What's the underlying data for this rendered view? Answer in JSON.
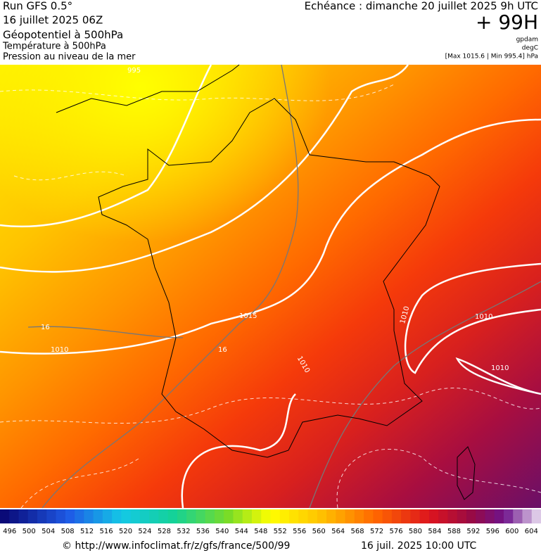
{
  "header": {
    "run": "Run GFS 0.5°",
    "date": "16 juillet 2025 06Z",
    "layer1": "Géopotentiel à 500hPa",
    "layer2": "Température à 500hPa",
    "layer3": "Pression au niveau de la mer",
    "echeance": "Echéance : dimanche 20 juillet 2025 9h UTC",
    "hour": "+ 99H",
    "unit1": "gpdam",
    "unit2": "degC",
    "range": "[Max 1015.6 | Min 995.4] hPa"
  },
  "map": {
    "contour_labels": [
      "995",
      "16",
      "1010",
      "1015",
      "16",
      "1010",
      "1010",
      "1010",
      "1010"
    ]
  },
  "colorbar": {
    "ticks": [
      496,
      500,
      504,
      508,
      512,
      516,
      520,
      524,
      528,
      532,
      536,
      540,
      544,
      548,
      552,
      556,
      560,
      564,
      568,
      572,
      576,
      580,
      584,
      588,
      592,
      596,
      600,
      604
    ]
  },
  "footer": {
    "url": "© http://www.infoclimat.fr/z/gfs/france/500/99",
    "timestamp": "16 juil. 2025 10:00 UTC"
  }
}
